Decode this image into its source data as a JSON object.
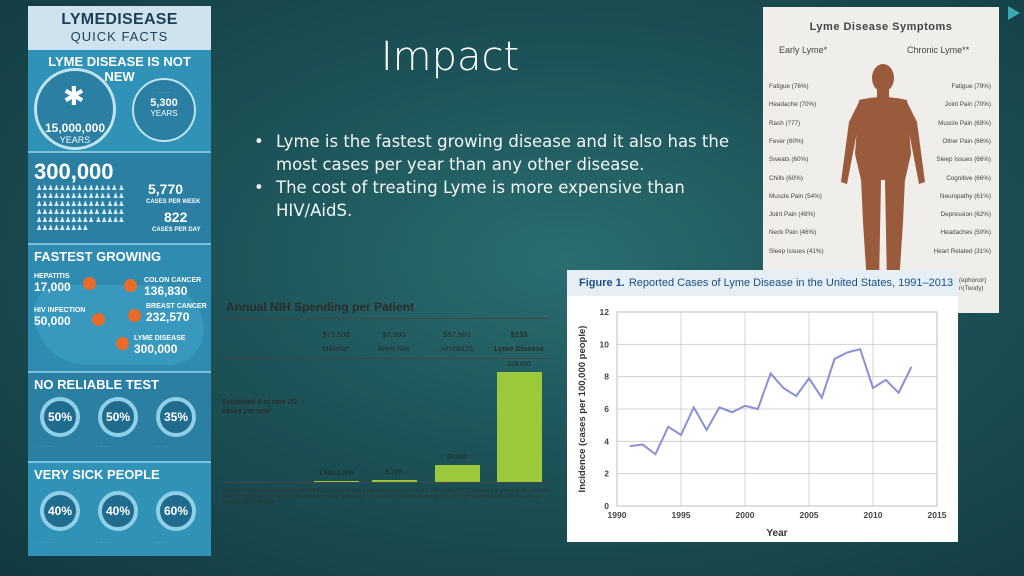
{
  "slide": {
    "title": "Impact",
    "bullets": [
      "Lyme is the fastest growing disease and it also has the most cases per year than any other disease.",
      "The cost of treating Lyme is more expensive than HIV/AidS."
    ],
    "colors": {
      "background": "#1c5257",
      "accent": "#3ba8b0"
    }
  },
  "infographic": {
    "header1": "LYMEDISEASE",
    "header2": "QUICK FACTS",
    "sec1_title": "LYME DISEASE IS NOT NEW",
    "years_num": "15,000,000",
    "years_unit": "YEARS",
    "years2_num": "5,300",
    "years2_unit": "YEARS",
    "cases_num": "300,000",
    "week_num": "5,770",
    "week_unit": "CASES PER WEEK",
    "day_num": "822",
    "day_unit": "CASES PER DAY",
    "sec3_title": "FASTEST GROWING",
    "hepatitis_label": "HEPATITIS",
    "hepatitis_num": "17,000",
    "colon_label": "COLON CANCER",
    "colon_num": "136,830",
    "hiv_label": "HIV INFECTION",
    "hiv_num": "50,000",
    "breast_label": "BREAST CANCER",
    "breast_num": "232,570",
    "lyme_label": "LYME DISEASE",
    "lyme_num": "300,000",
    "sec4_title": "NO RELIABLE TEST",
    "pct1": "50%",
    "pct2": "50%",
    "pct3": "35%",
    "sec5_title": "VERY SICK PEOPLE",
    "pct4": "40%",
    "pct5": "40%",
    "pct6": "60%"
  },
  "nih": {
    "title": "Annual NIH Spending per Patient",
    "costs": [
      {
        "amount": "$73,500",
        "label": "Malaria*"
      },
      {
        "amount": "$7,050",
        "label": "West Nile"
      },
      {
        "amount": "$57,960",
        "label": "HIV/AIDS"
      },
      {
        "amount": "$133",
        "label": "Lyme Disease"
      }
    ],
    "y_label": "Estimated # of new US cases per year",
    "chart_data": {
      "type": "bar",
      "categories": [
        "Malaria*",
        "West Nile",
        "HIV/AIDS",
        "Lyme Disease"
      ],
      "values": [
        2000,
        5700,
        50000,
        329000
      ],
      "value_labels": [
        "1,500-2,000",
        "5,700",
        "50,000",
        "329,000"
      ]
    },
    "source": "Sources: National Institutes for Health (NIH), Case counts from Centers for Disease Control & Prevention (CDC). Malaria is a global health concern and NIH priority but has very few domestic incidence. Virtually all US cases are contracted outside of the US. An estimated 1500-2000 cases are domestically contracted."
  },
  "symptoms": {
    "title": "Lyme Disease Symptoms",
    "early_header": "Early Lyme*",
    "chronic_header": "Chronic Lyme**",
    "early": [
      "Fatigue (76%)",
      "Headache (70%)",
      "Rash (?77)",
      "Fever (60%)",
      "Sweats (60%)",
      "Chills (60%)",
      "Muscle Pain (54%)",
      "Joint Pain (48%)",
      "Neck Pain (46%)",
      "Sleep Issues (41%)"
    ],
    "chronic": [
      "Fatigue (79%)",
      "Joint Pain (70%)",
      "Muscle Pain (69%)",
      "Other Pain (66%)",
      "Sleep Issues (66%)",
      "Cognitive (66%)",
      "Neuropathy (61%)",
      "Depression (62%)",
      "Headaches (50%)",
      "Heart Related (31%)"
    ],
    "edge_text_1": "(ephonor)",
    "edge_text_2": "n(Toody)",
    "colors": {
      "body": "#9a5a3c"
    }
  },
  "figure": {
    "label": "Figure 1.",
    "title": "Reported Cases of Lyme Disease in the United States, 1991–2013",
    "chart_data": {
      "type": "line",
      "xlabel": "Year",
      "ylabel": "Incidence (cases per 100,000 people)",
      "xlim": [
        1990,
        2015
      ],
      "ylim": [
        0,
        12
      ],
      "x_ticks": [
        1990,
        1995,
        2000,
        2005,
        2010,
        2015
      ],
      "y_ticks": [
        0,
        2,
        4,
        6,
        8,
        10,
        12
      ],
      "grid": true,
      "series": [
        {
          "x": [
            1991,
            1992,
            1993,
            1994,
            1995,
            1996,
            1997,
            1998,
            1999,
            2000,
            2001,
            2002,
            2003,
            2004,
            2005,
            2006,
            2007,
            2008,
            2009,
            2010,
            2011,
            2012,
            2013
          ],
          "y": [
            3.7,
            3.8,
            3.2,
            4.9,
            4.4,
            6.1,
            4.7,
            6.1,
            5.8,
            6.2,
            6.0,
            8.2,
            7.3,
            6.8,
            7.9,
            6.7,
            9.1,
            9.5,
            9.7,
            7.3,
            7.8,
            7.0,
            8.6
          ]
        }
      ]
    }
  }
}
